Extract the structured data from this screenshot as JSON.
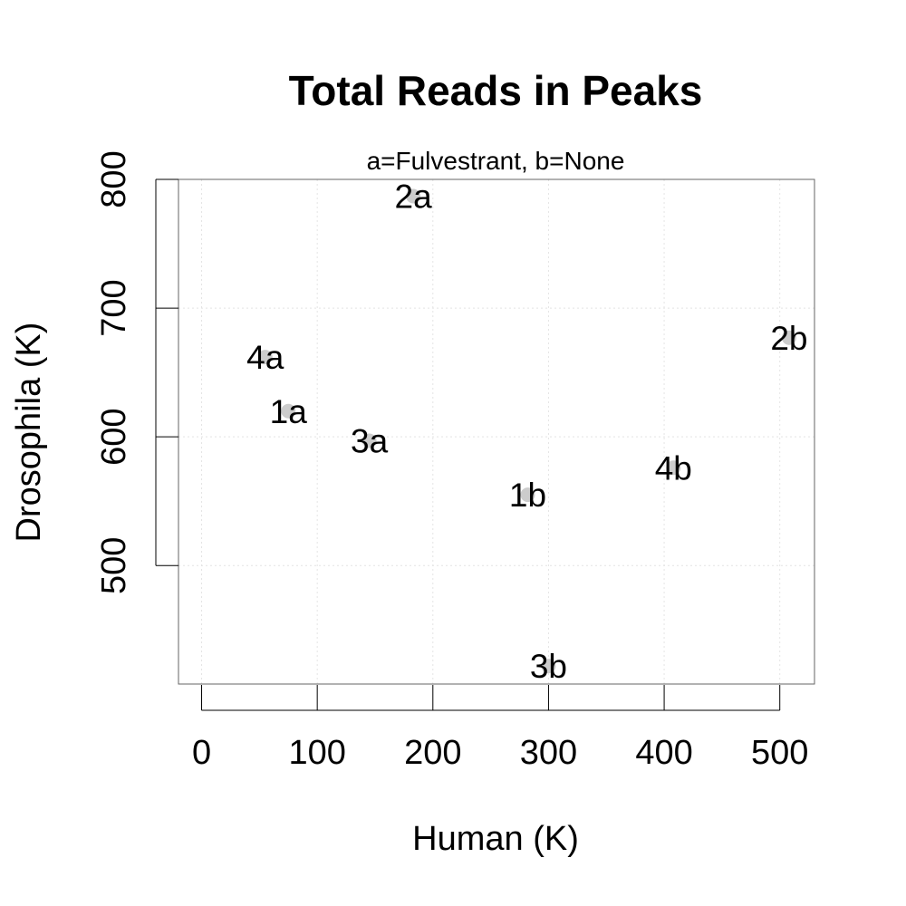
{
  "chart_data": {
    "type": "scatter",
    "title": "Total Reads in Peaks",
    "subtitle": "a=Fulvestrant, b=None",
    "xlabel": "Human (K)",
    "ylabel": "Drosophila (K)",
    "xlim": [
      -20,
      530
    ],
    "ylim": [
      408,
      800
    ],
    "xticks": [
      0,
      100,
      200,
      300,
      400,
      500
    ],
    "yticks": [
      500,
      600,
      700,
      800
    ],
    "grid": true,
    "point_color": "#cccccc",
    "grid_color": "#e4e4e4",
    "points": [
      {
        "label": "1a",
        "x": 75,
        "y": 620
      },
      {
        "label": "2a",
        "x": 183,
        "y": 787
      },
      {
        "label": "3a",
        "x": 145,
        "y": 597
      },
      {
        "label": "4a",
        "x": 55,
        "y": 662
      },
      {
        "label": "1b",
        "x": 282,
        "y": 555
      },
      {
        "label": "2b",
        "x": 508,
        "y": 677
      },
      {
        "label": "3b",
        "x": 300,
        "y": 422
      },
      {
        "label": "4b",
        "x": 408,
        "y": 576
      }
    ]
  }
}
